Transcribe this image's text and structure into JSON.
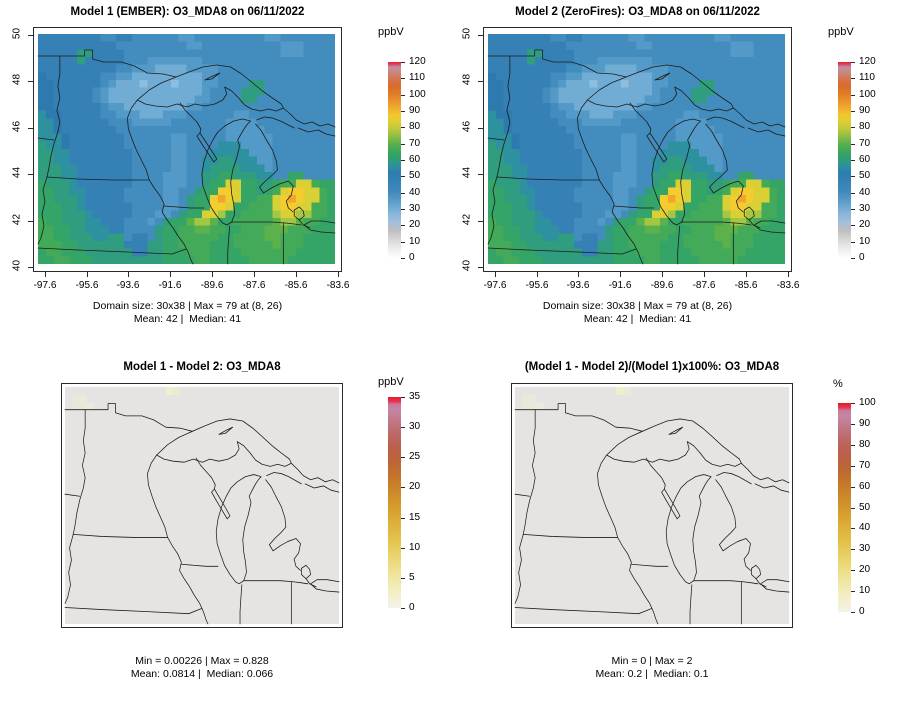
{
  "figure": {
    "background": "#ffffff"
  },
  "panels": [
    {
      "title": "Model 1 (EMBER): O3_MDA8 on 06/11/2022",
      "subtitle_line1": "Domain size: 30x38 | Max = 79 at (8, 26)",
      "subtitle_line2": "Mean: 42 |  Median: 41",
      "x_ticks": [
        "-97.6",
        "-95.6",
        "-93.6",
        "-91.6",
        "-89.6",
        "-87.6",
        "-85.6",
        "-83.6"
      ],
      "y_ticks": [
        "50",
        "48",
        "46",
        "44",
        "42",
        "40"
      ],
      "colorbar": {
        "unit": "ppbV",
        "ticks": [
          "120",
          "110",
          "100",
          "90",
          "80",
          "70",
          "60",
          "50",
          "40",
          "30",
          "20",
          "10",
          "0"
        ]
      }
    },
    {
      "title": "Model 2 (ZeroFires): O3_MDA8 on 06/11/2022",
      "subtitle_line1": "Domain size: 30x38 | Max = 79 at (8, 26)",
      "subtitle_line2": "Mean: 42 |  Median: 41",
      "x_ticks": [
        "-97.6",
        "-95.6",
        "-93.6",
        "-91.6",
        "-89.6",
        "-87.6",
        "-85.6",
        "-83.6"
      ],
      "y_ticks": [
        "50",
        "48",
        "46",
        "44",
        "42",
        "40"
      ],
      "colorbar": {
        "unit": "ppbV",
        "ticks": [
          "120",
          "110",
          "100",
          "90",
          "80",
          "70",
          "60",
          "50",
          "40",
          "30",
          "20",
          "10",
          "0"
        ]
      }
    },
    {
      "title": "Model 1 - Model 2: O3_MDA8",
      "stats_line1": "Min = 0.00226 | Max = 0.828",
      "stats_line2": "Mean: 0.0814 |  Median: 0.066",
      "colorbar": {
        "unit": "ppbV",
        "ticks": [
          "35",
          "30",
          "25",
          "20",
          "15",
          "10",
          "5",
          "0"
        ]
      }
    },
    {
      "title": "(Model 1 - Model 2)/(Model 1)x100%: O3_MDA8",
      "stats_line1": "Min = 0 | Max = 2",
      "stats_line2": "Mean: 0.2 |  Median: 0.1",
      "colorbar": {
        "unit": "%",
        "ticks": [
          "100",
          "90",
          "80",
          "70",
          "60",
          "50",
          "40",
          "30",
          "20",
          "10",
          "0"
        ]
      }
    }
  ],
  "chart_data": [
    {
      "type": "heatmap",
      "title": "Model 1 (EMBER): O3_MDA8 on 06/11/2022",
      "unit": "ppbV",
      "domain": {
        "cols": 38,
        "rows": 30,
        "lon_range": [
          -98.0,
          -83.6
        ],
        "lat_range": [
          40,
          50
        ]
      },
      "xlabel": "",
      "ylabel": "",
      "x_tick_values": [
        -97.6,
        -95.6,
        -93.6,
        -91.6,
        -89.6,
        -87.6,
        -85.6,
        -83.6
      ],
      "y_tick_values": [
        50,
        48,
        46,
        44,
        42,
        40
      ],
      "colorbar": {
        "min": 0,
        "max": 120,
        "step": 10,
        "stops": [
          [
            0,
            "#ffffff"
          ],
          [
            3,
            "#f4f4f4"
          ],
          [
            7,
            "#e3e3e3"
          ],
          [
            11,
            "#cfcfcf"
          ],
          [
            14,
            "#bfbfc1"
          ],
          [
            16,
            "#b3bdca"
          ],
          [
            18,
            "#a5c0dc"
          ],
          [
            23,
            "#85b4d8"
          ],
          [
            29,
            "#5b9cca"
          ],
          [
            34,
            "#4189bb"
          ],
          [
            40,
            "#3380b5"
          ],
          [
            44,
            "#2e7eae"
          ],
          [
            46,
            "#2e8ba4"
          ],
          [
            49,
            "#2f9a85"
          ],
          [
            52,
            "#32a169"
          ],
          [
            55,
            "#3fa85a"
          ],
          [
            58,
            "#5aae4d"
          ],
          [
            62,
            "#8cbd45"
          ],
          [
            66,
            "#c0c83c"
          ],
          [
            70,
            "#e3cd33"
          ],
          [
            73,
            "#f2c62f"
          ],
          [
            76,
            "#f0b02d"
          ],
          [
            80,
            "#ea932b"
          ],
          [
            84,
            "#e17a27"
          ],
          [
            88,
            "#d86b2b"
          ],
          [
            91,
            "#d4734d"
          ],
          [
            94,
            "#cd8370"
          ],
          [
            96,
            "#c48d92"
          ],
          [
            97.5,
            "#c08da4"
          ],
          [
            98.5,
            "#d4536b"
          ],
          [
            100,
            "#ec1b2b"
          ]
        ]
      },
      "stats": {
        "max": 79,
        "max_at": "(8, 26)",
        "mean": 42,
        "median": 41
      },
      "palette": {
        "A": "#8ebede",
        "B": "#71acd4",
        "C": "#539ac8",
        "D": "#428cbe",
        "E": "#3581b6",
        "F": "#2e79ae",
        "G": "#2d91a0",
        "H": "#2f9d7e",
        "I": "#35a467",
        "J": "#42aa58",
        "K": "#5db14b",
        "L": "#a3c643",
        "M": "#d9d036",
        "N": "#f3cd2f",
        "O": "#f0a52b"
      },
      "palette_values_ppbV": {
        "A": 26,
        "B": 30,
        "C": 35,
        "D": 40,
        "E": 43,
        "F": 45,
        "G": 48,
        "H": 51,
        "I": 54,
        "J": 57,
        "K": 60,
        "L": 65,
        "M": 70,
        "N": 74,
        "O": 79
      },
      "grid": [
        "EEEEEEEEDDEEDDDDDDCCDDDDDDDDDCCDDDDDDD",
        "EEEEEEEEEEDDDDDDDDDCCDDDDDDDDDDCCCDDDD",
        "EEEEEHHEEEEDDDDDDDDDDDDDDDDDDDDCCCDDDD",
        "EEEEEHEEEEEDDDCCCCCCCDDDDDDDDDDDDDDDDD",
        "EEEEEEEEEEDDCCCBBBBCCCCDDDDDDDDDDDDDDD",
        "FEEEEEEEDDCCBBBBBBBBBCCDDDDDDDDDDDDDDD",
        "FFEEEEEEDCBBBABBBABBBCCDDDDHHDDDDDDDDD",
        "FFEEEEEDCBBBBBBBBBBBBCDDDDHHHDDDDDDDDD",
        "FFEEEEEDCBBBBBBBBBBBCCDDDDHHDDDDDDDDDD",
        "FFEEEEEEDCCBBBBBBBBCCDDDDDDDDDDDDDDDDD",
        "GFFEEEEEDDCCCBBBCCCDDDDDDCCDDDDDDDDDDD",
        "GGFEEEEEEDDDCCCCCDDDDDDDCCCCDDDDDDDDDD",
        "GGFEEEEEEEDDDDDDDDDDDDDDCCCCCDDDDDDDDD",
        "GGGFEEEEEEEDDDDDDCCDDDDDCCCCCCDDDDDDDD",
        "HGGFEEEEEEEDDDDDDCCDDDDGGGCCCCDDDDDDDD",
        "HHGGEEEEEEEEDDDDDCCDDDGGGGGCCCDDDDDDDD",
        "HHGGEEEEEEEEDDDDDCCDDGGHHGGGCCDDDDDDDD",
        "HHHGGEEEEEEEDDDDDCCDDGHHHHGGGCDDDDDDDD",
        "HHHGGEEEEEEEDDDDCCCDDHHIIHHHGGDDIIDDDD",
        "IHHHGEEEEEEEDDDDCCCDDHIIMMIIHHIJJMMJII",
        "IIHHGGEEEEEDDDDDCCDDHIINNMIIHIJMNNMMJI",
        "IIHHHGEEEEEDDDDDCCDHIINONMIIJJMNONMMJI",
        "IIIHHGEEEEEEDDDDCCDHIINNMIIJJJMNNMMJJI",
        "IIIHHHGEEEEEDDDCCDHIIMMLIIJJJJLMMLLJJI",
        "JIIHHHGGEEEDDDCDHIIKLLKIIJJJJJKLLKJJII",
        "JJIIHHGGGEEDDDDHIIJJKKJJIIJJJKKKJJJIII",
        "JJIIHHHGGHHDEEDHIIJJJJJIIJJJJKKJJJIIII",
        "JJJIIHHHHHHEEEHHIIJJJJIIIJJJJJKJJJIIII",
        "IJJIIIHHHHHHEEHHIIIJJJIIIIJJJJJJJIIIII",
        "IIJJIIIHHHHHHHHHIIIIJJIIIIIJJJJJIIIIII"
      ]
    },
    {
      "type": "heatmap",
      "title": "Model 2 (ZeroFires): O3_MDA8 on 06/11/2022",
      "unit": "ppbV",
      "domain": {
        "cols": 38,
        "rows": 30,
        "lon_range": [
          -98.0,
          -83.6
        ],
        "lat_range": [
          40,
          50
        ]
      },
      "colorbar": {
        "min": 0,
        "max": 120,
        "step": 10
      },
      "stats": {
        "max": 79,
        "max_at": "(8, 26)",
        "mean": 42,
        "median": 41
      },
      "grid_same_as": 0
    },
    {
      "type": "heatmap",
      "title": "Model 1 - Model 2: O3_MDA8",
      "unit": "ppbV",
      "domain": {
        "cols": 38,
        "rows": 30
      },
      "colorbar": {
        "min": 0,
        "max": 35,
        "step": 5,
        "stops": [
          [
            0,
            "#f4f2e9"
          ],
          [
            8,
            "#f3eec4"
          ],
          [
            16,
            "#efe49c"
          ],
          [
            24,
            "#ead671"
          ],
          [
            32,
            "#e4c44e"
          ],
          [
            40,
            "#ddb13a"
          ],
          [
            48,
            "#d59c2e"
          ],
          [
            56,
            "#cb8629"
          ],
          [
            63,
            "#c3732b"
          ],
          [
            70,
            "#bc6438"
          ],
          [
            76,
            "#bb5f4c"
          ],
          [
            82,
            "#bd6765"
          ],
          [
            87,
            "#c0737f"
          ],
          [
            91,
            "#c37e94"
          ],
          [
            94,
            "#c487a3"
          ],
          [
            96.5,
            "#c9799a"
          ],
          [
            98,
            "#e23350"
          ],
          [
            100,
            "#ee1524"
          ]
        ]
      },
      "stats": {
        "min": 0.00226,
        "max": 0.828,
        "mean": 0.0814,
        "median": 0.066
      },
      "base_value": 0,
      "base_color": "#e5e4e2",
      "faint_cells": [
        {
          "c": 14,
          "r": 0,
          "color": "#f0eecb"
        },
        {
          "c": 15,
          "r": 0,
          "color": "#ecead7"
        },
        {
          "c": 1,
          "r": 1,
          "color": "#eae8d9"
        },
        {
          "c": 2,
          "r": 1,
          "color": "#ebe9dc"
        },
        {
          "c": 1,
          "r": 2,
          "color": "#eae8da"
        },
        {
          "c": 2,
          "r": 2,
          "color": "#ece9db"
        },
        {
          "c": 3,
          "r": 2,
          "color": "#eceadd"
        }
      ]
    },
    {
      "type": "heatmap",
      "title": "(Model 1 - Model 2)/(Model 1)x100%: O3_MDA8",
      "unit": "%",
      "domain": {
        "cols": 38,
        "rows": 30
      },
      "colorbar": {
        "min": 0,
        "max": 100,
        "step": 10,
        "stops": [
          [
            0,
            "#f4f2e9"
          ],
          [
            8,
            "#f3eec4"
          ],
          [
            16,
            "#efe49c"
          ],
          [
            24,
            "#ead671"
          ],
          [
            32,
            "#e4c44e"
          ],
          [
            40,
            "#ddb13a"
          ],
          [
            48,
            "#d59c2e"
          ],
          [
            56,
            "#cb8629"
          ],
          [
            63,
            "#c3732b"
          ],
          [
            70,
            "#bc6438"
          ],
          [
            76,
            "#bb5f4c"
          ],
          [
            82,
            "#bd6765"
          ],
          [
            87,
            "#c0737f"
          ],
          [
            91,
            "#c37e94"
          ],
          [
            94,
            "#c487a3"
          ],
          [
            96.5,
            "#c9799a"
          ],
          [
            98,
            "#e23350"
          ],
          [
            100,
            "#ee1524"
          ]
        ]
      },
      "stats": {
        "min": 0,
        "max": 2,
        "mean": 0.2,
        "median": 0.1
      },
      "base_value": 0,
      "base_color": "#e5e4e2",
      "faint_cells": [
        {
          "c": 14,
          "r": 0,
          "color": "#f0eecb"
        },
        {
          "c": 15,
          "r": 0,
          "color": "#ecead7"
        },
        {
          "c": 1,
          "r": 1,
          "color": "#eae8d9"
        },
        {
          "c": 2,
          "r": 1,
          "color": "#ebe9dc"
        },
        {
          "c": 1,
          "r": 2,
          "color": "#eae8da"
        },
        {
          "c": 2,
          "r": 2,
          "color": "#ece9db"
        },
        {
          "c": 3,
          "r": 2,
          "color": "#eceadd"
        }
      ]
    }
  ]
}
